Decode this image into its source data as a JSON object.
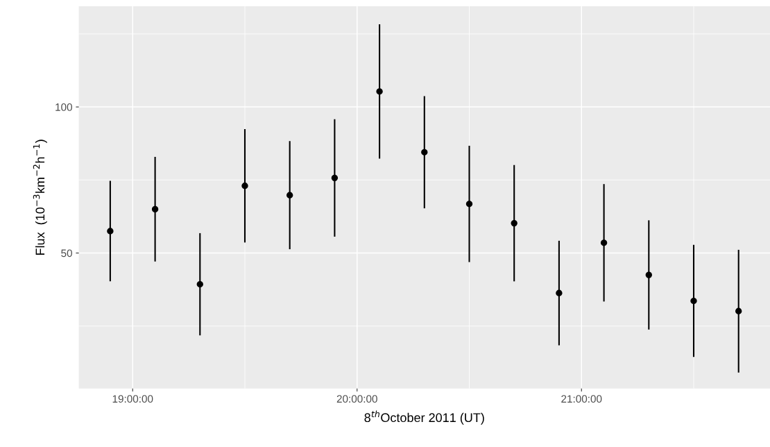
{
  "chart_data": {
    "type": "scatter",
    "xlabel": "8$^{th}$October 2011 (UT)",
    "ylabel": "Flux  (10$^{−3}$km$^{−2}$h$^{−1}$)",
    "x": [
      18.9,
      19.1,
      19.3,
      19.5,
      19.7,
      19.9,
      20.1,
      20.3,
      20.5,
      20.7,
      20.9,
      21.1,
      21.3,
      21.5,
      21.7
    ],
    "series": [
      {
        "color": "#000000",
        "values": [
          57.5,
          65.0,
          39.3,
          73.0,
          69.8,
          75.7,
          105.3,
          84.5,
          66.8,
          60.2,
          36.3,
          53.5,
          42.5,
          33.6,
          30.1
        ],
        "errors": [
          17.2,
          17.9,
          17.5,
          19.4,
          18.5,
          20.1,
          23.0,
          19.2,
          19.9,
          19.9,
          17.9,
          20.1,
          18.7,
          19.2,
          21.0
        ]
      }
    ],
    "xlim": [
      18.76,
      21.84
    ],
    "xticks": [
      {
        "value": 19,
        "label": "19:00:00"
      },
      {
        "value": 19.5,
        "label": null
      },
      {
        "value": 20,
        "label": "20:00:00"
      },
      {
        "value": 20.5,
        "label": null
      },
      {
        "value": 21,
        "label": "21:00:00"
      },
      {
        "value": 21.5,
        "label": null
      }
    ],
    "ylim": [
      3.6,
      134.5
    ],
    "yticks": [
      {
        "value": 25,
        "label": null
      },
      50,
      {
        "value": 75,
        "label": null
      },
      100,
      {
        "value": 125,
        "label": null
      }
    ],
    "grid": true,
    "marker": "circle"
  }
}
